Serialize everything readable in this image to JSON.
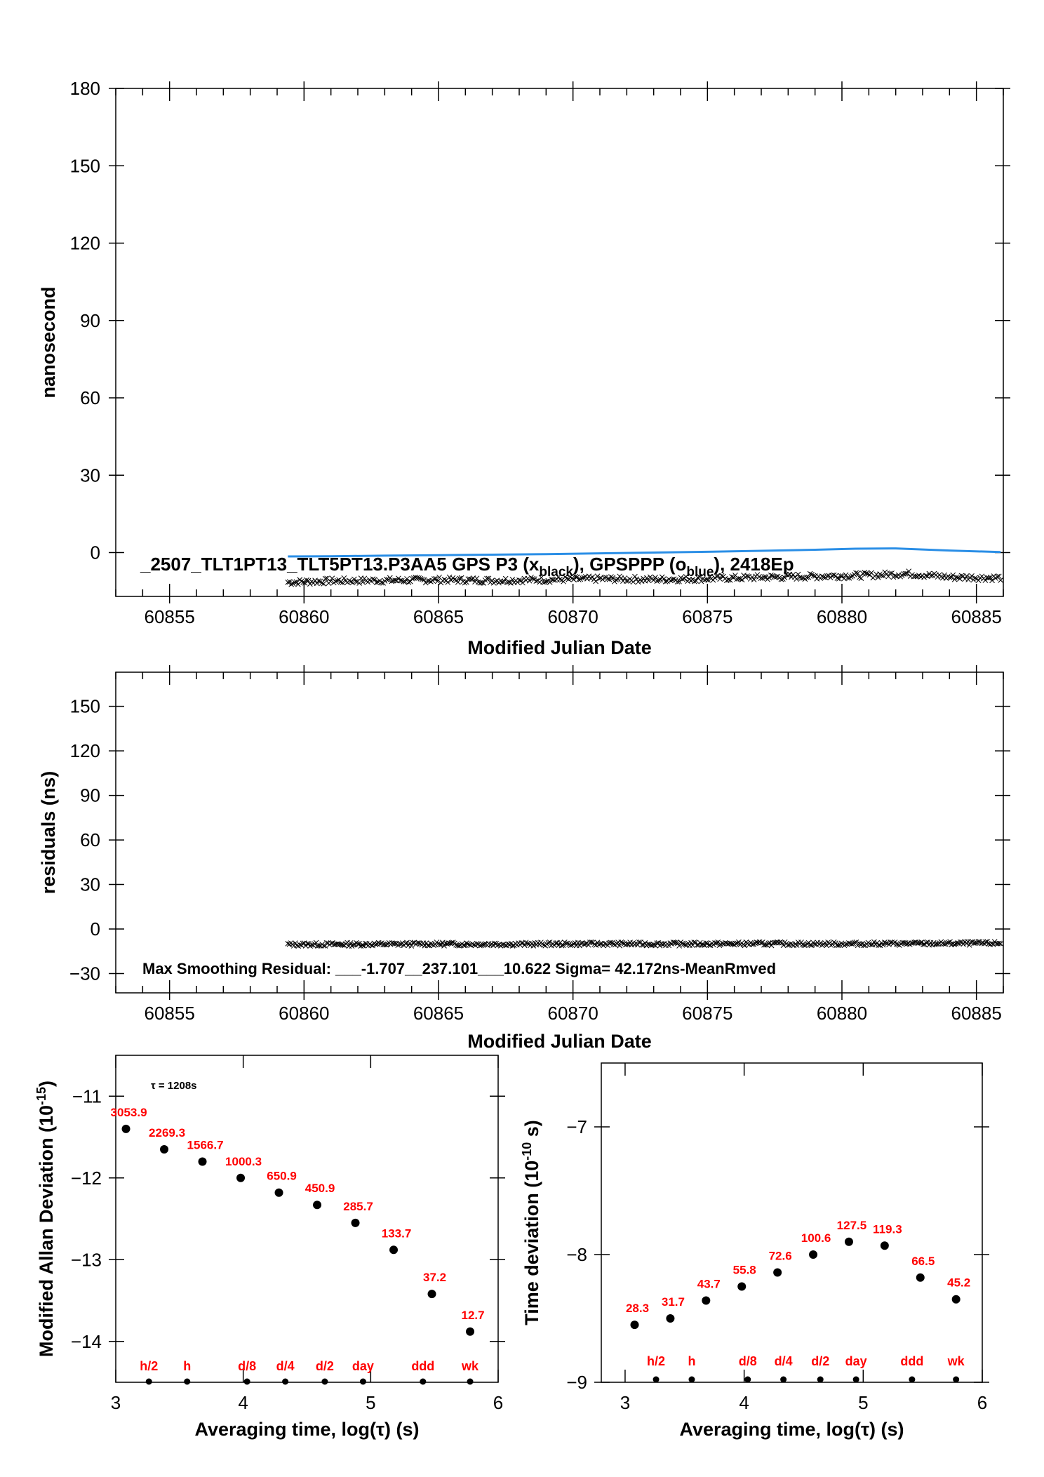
{
  "chart_data": [
    {
      "type": "line",
      "ylabel": "nanosecond",
      "xlabel": "Modified Julian Date",
      "xlim": [
        60853,
        60886
      ],
      "ylim": [
        -17,
        180
      ],
      "xticks": [
        60855,
        60860,
        60865,
        60870,
        60875,
        60880,
        60885
      ],
      "yticks": [
        0,
        30,
        60,
        90,
        120,
        150,
        180
      ],
      "legend_text": "_2507_TLT1PT13_TLT5PT13.P3AA5     GPS P3 (x",
      "legend_sub1": "black",
      "legend_mid": "),  GPSPPP (o",
      "legend_sub2": "blue",
      "legend_end": "),  2418Ep",
      "series": [
        {
          "color": "#000000",
          "marker": "x",
          "x": [
            60859.4,
            60861,
            60863,
            60865,
            60867,
            60869,
            60871,
            60873,
            60875,
            60877,
            60879,
            60881,
            60882.5,
            60884,
            60885.9
          ],
          "y": [
            -11.5,
            -11,
            -10.8,
            -10.6,
            -10.8,
            -10.5,
            -10.2,
            -10.4,
            -10.1,
            -9.6,
            -9.2,
            -8.8,
            -8.2,
            -9.5,
            -9.8
          ]
        },
        {
          "color": "#2a8ee6",
          "marker": "line",
          "x": [
            60859.4,
            60861,
            60863,
            60865,
            60867,
            60869,
            60871,
            60873,
            60875,
            60877,
            60879,
            60880.5,
            60882,
            60883,
            60884,
            60885.9
          ],
          "y": [
            -1.5,
            -1.4,
            -1.2,
            -1.0,
            -0.8,
            -0.6,
            -0.3,
            0,
            0.3,
            0.7,
            1.1,
            1.5,
            1.6,
            1.2,
            0.8,
            0.2
          ]
        }
      ]
    },
    {
      "type": "scatter",
      "ylabel": "residuals (ns)",
      "xlabel": "Modified Julian Date",
      "xlim": [
        60853,
        60886
      ],
      "ylim": [
        -43,
        173
      ],
      "xticks": [
        60855,
        60860,
        60865,
        60870,
        60875,
        60880,
        60885
      ],
      "yticks": [
        -30,
        0,
        30,
        60,
        90,
        120,
        150
      ],
      "annotation": "Max Smoothing Residual:  ___-1.707__237.101___10.622  Sigma= 42.172ns-MeanRmved",
      "series": [
        {
          "color": "#000000",
          "marker": "x",
          "x": [
            60859.4,
            60862,
            60865,
            60868,
            60871,
            60874,
            60877,
            60880,
            60883,
            60885.9
          ],
          "y": [
            -10.4,
            -10.3,
            -10.1,
            -10.2,
            -10.0,
            -10.1,
            -9.9,
            -10.0,
            -9.8,
            -9.6
          ]
        }
      ]
    },
    {
      "type": "scatter",
      "ylabel": "Modified Allan Deviation (10",
      "ylabel_sup": "-15",
      "ylabel_end": ")",
      "xlabel": "Averaging time, log(τ) (s)",
      "xlim": [
        3,
        6
      ],
      "ylim": [
        -14.5,
        -10.5
      ],
      "xticks": [
        3,
        4,
        5,
        6
      ],
      "yticks": [
        -14,
        -13,
        -12,
        -11
      ],
      "tau_note": "τ = 1208s",
      "x": [
        3.08,
        3.38,
        3.68,
        3.98,
        4.28,
        4.58,
        4.88,
        5.18,
        5.48,
        5.78
      ],
      "y": [
        -11.4,
        -11.65,
        -11.8,
        -12.0,
        -12.18,
        -12.33,
        -12.55,
        -12.88,
        -13.42,
        -13.88
      ],
      "point_labels": [
        "3053.9",
        "2269.3",
        "1566.7",
        "1000.3",
        "650.9",
        "450.9",
        "285.7",
        "133.7",
        "37.2",
        "12.7"
      ],
      "markers": [
        {
          "label": "h/2",
          "x": 3.26
        },
        {
          "label": "h",
          "x": 3.56
        },
        {
          "label": "d/8",
          "x": 4.03
        },
        {
          "label": "d/4",
          "x": 4.33
        },
        {
          "label": "d/2",
          "x": 4.64
        },
        {
          "label": "day",
          "x": 4.94
        },
        {
          "label": "ddd",
          "x": 5.41
        },
        {
          "label": "wk",
          "x": 5.78
        }
      ]
    },
    {
      "type": "scatter",
      "ylabel": "Time deviation (10",
      "ylabel_sup": "-10",
      "ylabel_end": " s)",
      "xlabel": "Averaging time, log(τ) (s)",
      "xlim": [
        2.8,
        6.0
      ],
      "ylim": [
        -9.0,
        -6.5
      ],
      "xticks": [
        3,
        4,
        5,
        6
      ],
      "yticks": [
        -9,
        -8,
        -7
      ],
      "x": [
        3.08,
        3.38,
        3.68,
        3.98,
        4.28,
        4.58,
        4.88,
        5.18,
        5.48,
        5.78
      ],
      "y": [
        -8.55,
        -8.5,
        -8.36,
        -8.25,
        -8.14,
        -8.0,
        -7.9,
        -7.93,
        -8.18,
        -8.35
      ],
      "point_labels": [
        "28.3",
        "31.7",
        "43.7",
        "55.8",
        "72.6",
        "100.6",
        "127.5",
        "119.3",
        "66.5",
        "45.2"
      ],
      "markers": [
        {
          "label": "h/2",
          "x": 3.26
        },
        {
          "label": "h",
          "x": 3.56
        },
        {
          "label": "d/8",
          "x": 4.03
        },
        {
          "label": "d/4",
          "x": 4.33
        },
        {
          "label": "d/2",
          "x": 4.64
        },
        {
          "label": "day",
          "x": 4.94
        },
        {
          "label": "ddd",
          "x": 5.41
        },
        {
          "label": "wk",
          "x": 5.78
        }
      ]
    }
  ]
}
